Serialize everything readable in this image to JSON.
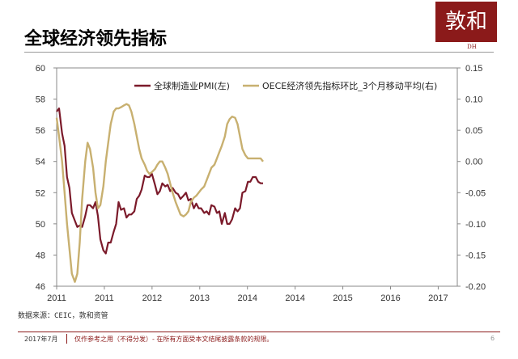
{
  "header": {
    "title": "全球经济领先指标",
    "logo_text": "敦和",
    "logo_sub": "DH"
  },
  "source_note": "数据来源：CEIC，敦和资管",
  "footer": {
    "date": "2017年7月",
    "disclaimer": "仅作参考之用（不得分发）- 在所有方面受本文结尾披露条款的规限。",
    "page": "6"
  },
  "colors": {
    "pmi": "#7b1a2a",
    "oecd": "#c8b070",
    "brand": "#8b1a1a"
  },
  "chart_data": {
    "type": "line",
    "title": "",
    "legend_position": "top",
    "x_ticks": [
      "2011",
      "2011",
      "2012",
      "2013",
      "2014",
      "2014",
      "2015",
      "2016",
      "2017"
    ],
    "x_range": [
      2011.0,
      2017.6
    ],
    "left_axis": {
      "range": [
        46,
        60
      ],
      "ticks": [
        "46",
        "48",
        "50",
        "52",
        "54",
        "56",
        "58",
        "60"
      ]
    },
    "right_axis": {
      "range": [
        -0.2,
        0.15
      ],
      "ticks": [
        "-0.20",
        "-0.15",
        "-0.10",
        "-0.05",
        "0.00",
        "0.05",
        "0.10",
        "0.15"
      ]
    },
    "series": [
      {
        "name": "全球制造业PMI(左)",
        "axis": "left",
        "points": [
          [
            2011.0,
            57.2
          ],
          [
            2011.04,
            57.4
          ],
          [
            2011.09,
            55.8
          ],
          [
            2011.13,
            55.0
          ],
          [
            2011.17,
            53.0
          ],
          [
            2011.21,
            52.3
          ],
          [
            2011.25,
            50.7
          ],
          [
            2011.3,
            50.2
          ],
          [
            2011.34,
            49.8
          ],
          [
            2011.38,
            49.9
          ],
          [
            2011.42,
            49.8
          ],
          [
            2011.47,
            50.5
          ],
          [
            2011.51,
            51.2
          ],
          [
            2011.55,
            51.2
          ],
          [
            2011.6,
            51.0
          ],
          [
            2011.64,
            51.4
          ],
          [
            2011.68,
            50.5
          ],
          [
            2011.72,
            49.0
          ],
          [
            2011.77,
            48.3
          ],
          [
            2011.81,
            48.1
          ],
          [
            2011.85,
            48.8
          ],
          [
            2011.89,
            48.8
          ],
          [
            2011.94,
            49.5
          ],
          [
            2011.98,
            50.0
          ],
          [
            2012.02,
            51.4
          ],
          [
            2012.06,
            50.9
          ],
          [
            2012.11,
            51.0
          ],
          [
            2012.15,
            50.4
          ],
          [
            2012.19,
            50.6
          ],
          [
            2012.23,
            50.6
          ],
          [
            2012.28,
            50.8
          ],
          [
            2012.32,
            51.6
          ],
          [
            2012.36,
            51.8
          ],
          [
            2012.4,
            52.2
          ],
          [
            2012.45,
            53.1
          ],
          [
            2012.49,
            53.0
          ],
          [
            2012.53,
            53.0
          ],
          [
            2012.57,
            53.2
          ],
          [
            2012.62,
            52.5
          ],
          [
            2012.66,
            51.9
          ],
          [
            2012.7,
            52.1
          ],
          [
            2012.74,
            52.6
          ],
          [
            2012.79,
            52.4
          ],
          [
            2012.83,
            52.5
          ],
          [
            2012.87,
            52.1
          ],
          [
            2012.91,
            52.3
          ],
          [
            2012.96,
            52.0
          ],
          [
            2013.0,
            51.9
          ],
          [
            2013.04,
            51.6
          ],
          [
            2013.09,
            51.8
          ],
          [
            2013.13,
            52.0
          ],
          [
            2013.17,
            51.5
          ],
          [
            2013.21,
            51.6
          ],
          [
            2013.26,
            51.0
          ],
          [
            2013.3,
            51.3
          ],
          [
            2013.34,
            51.0
          ],
          [
            2013.38,
            51.0
          ],
          [
            2013.43,
            50.7
          ],
          [
            2013.47,
            50.8
          ],
          [
            2013.51,
            50.6
          ],
          [
            2013.55,
            51.2
          ],
          [
            2013.6,
            51.1
          ],
          [
            2013.64,
            50.7
          ],
          [
            2013.68,
            50.8
          ],
          [
            2013.72,
            50.0
          ],
          [
            2013.77,
            50.7
          ],
          [
            2013.81,
            50.0
          ],
          [
            2013.85,
            50.0
          ],
          [
            2013.89,
            50.3
          ],
          [
            2013.94,
            51.0
          ],
          [
            2013.98,
            50.8
          ],
          [
            2014.02,
            51.0
          ],
          [
            2014.06,
            52.0
          ],
          [
            2014.11,
            52.1
          ],
          [
            2014.15,
            52.7
          ],
          [
            2014.19,
            52.7
          ],
          [
            2014.23,
            53.0
          ],
          [
            2014.28,
            53.0
          ],
          [
            2014.32,
            52.7
          ],
          [
            2014.36,
            52.6
          ],
          [
            2014.4,
            52.6
          ]
        ]
      },
      {
        "name": "OECE经济领先指标环比_3个月移动平均(右)",
        "axis": "right",
        "points": [
          [
            2011.0,
            0.07
          ],
          [
            2011.04,
            0.04
          ],
          [
            2011.09,
            0.0
          ],
          [
            2011.13,
            -0.05
          ],
          [
            2011.17,
            -0.1
          ],
          [
            2011.21,
            -0.14
          ],
          [
            2011.25,
            -0.18
          ],
          [
            2011.3,
            -0.193
          ],
          [
            2011.34,
            -0.18
          ],
          [
            2011.38,
            -0.13
          ],
          [
            2011.42,
            -0.06
          ],
          [
            2011.47,
            0.0
          ],
          [
            2011.51,
            0.03
          ],
          [
            2011.55,
            0.02
          ],
          [
            2011.6,
            -0.01
          ],
          [
            2011.64,
            -0.05
          ],
          [
            2011.68,
            -0.075
          ],
          [
            2011.72,
            -0.07
          ],
          [
            2011.77,
            -0.04
          ],
          [
            2011.81,
            0.0
          ],
          [
            2011.85,
            0.03
          ],
          [
            2011.89,
            0.06
          ],
          [
            2011.94,
            0.08
          ],
          [
            2011.98,
            0.085
          ],
          [
            2012.02,
            0.085
          ],
          [
            2012.06,
            0.087
          ],
          [
            2012.11,
            0.09
          ],
          [
            2012.15,
            0.092
          ],
          [
            2012.19,
            0.09
          ],
          [
            2012.23,
            0.08
          ],
          [
            2012.28,
            0.06
          ],
          [
            2012.32,
            0.04
          ],
          [
            2012.36,
            0.02
          ],
          [
            2012.4,
            0.005
          ],
          [
            2012.45,
            -0.005
          ],
          [
            2012.49,
            -0.015
          ],
          [
            2012.53,
            -0.02
          ],
          [
            2012.57,
            -0.017
          ],
          [
            2012.62,
            -0.012
          ],
          [
            2012.66,
            -0.005
          ],
          [
            2012.7,
            0.0
          ],
          [
            2012.74,
            0.0
          ],
          [
            2012.79,
            -0.01
          ],
          [
            2012.83,
            -0.02
          ],
          [
            2012.87,
            -0.035
          ],
          [
            2012.91,
            -0.05
          ],
          [
            2012.96,
            -0.065
          ],
          [
            2013.0,
            -0.075
          ],
          [
            2013.04,
            -0.085
          ],
          [
            2013.09,
            -0.088
          ],
          [
            2013.13,
            -0.085
          ],
          [
            2013.17,
            -0.08
          ],
          [
            2013.21,
            -0.065
          ],
          [
            2013.26,
            -0.058
          ],
          [
            2013.3,
            -0.055
          ],
          [
            2013.34,
            -0.05
          ],
          [
            2013.38,
            -0.045
          ],
          [
            2013.43,
            -0.04
          ],
          [
            2013.47,
            -0.03
          ],
          [
            2013.51,
            -0.02
          ],
          [
            2013.55,
            -0.01
          ],
          [
            2013.6,
            -0.005
          ],
          [
            2013.64,
            0.005
          ],
          [
            2013.68,
            0.015
          ],
          [
            2013.72,
            0.025
          ],
          [
            2013.77,
            0.04
          ],
          [
            2013.81,
            0.06
          ],
          [
            2013.85,
            0.068
          ],
          [
            2013.89,
            0.072
          ],
          [
            2013.94,
            0.07
          ],
          [
            2013.98,
            0.06
          ],
          [
            2014.02,
            0.04
          ],
          [
            2014.06,
            0.02
          ],
          [
            2014.11,
            0.01
          ],
          [
            2014.15,
            0.005
          ],
          [
            2014.19,
            0.005
          ],
          [
            2014.23,
            0.005
          ],
          [
            2014.28,
            0.005
          ],
          [
            2014.32,
            0.005
          ],
          [
            2014.36,
            0.005
          ],
          [
            2014.4,
            0.0
          ]
        ]
      }
    ]
  }
}
